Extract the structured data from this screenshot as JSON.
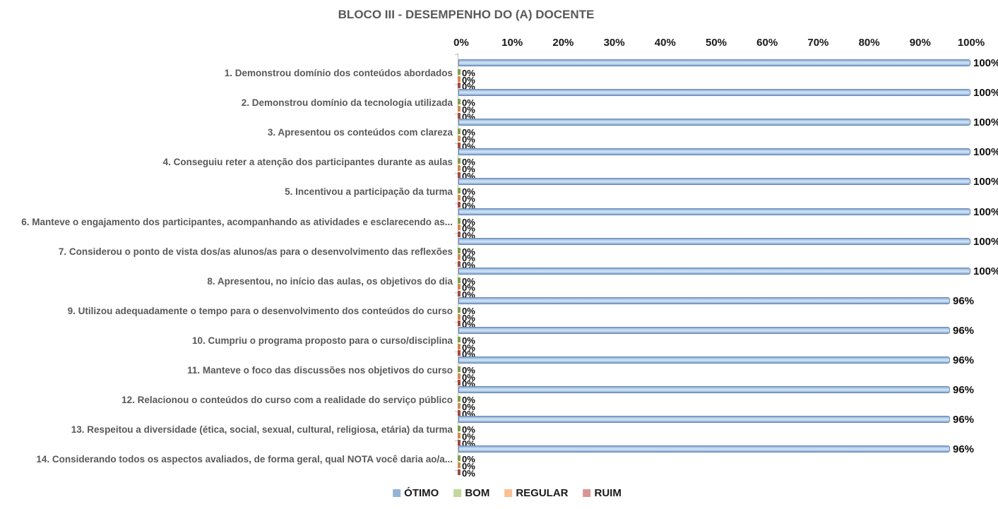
{
  "title": "BLOCO III - DESEMPENHO DO (A) DOCENTE",
  "chart_data": {
    "type": "bar",
    "orientation": "horizontal",
    "title": "BLOCO III - DESEMPENHO DO (A) DOCENTE",
    "categories": [
      "1. Demonstrou domínio dos conteúdos abordados",
      "2. Demonstrou domínio da tecnologia utilizada",
      "3. Apresentou os conteúdos com clareza",
      "4. Conseguiu reter a atenção dos participantes durante as aulas",
      "5. Incentivou a participação da turma",
      "6. Manteve o engajamento dos participantes, acompanhando as atividades e esclarecendo as...",
      "7. Considerou o ponto de vista dos/as alunos/as para o desenvolvimento das reflexões",
      "8. Apresentou, no início das aulas, os objetivos do dia",
      "9. Utilizou adequadamente o tempo para o desenvolvimento dos conteúdos do curso",
      "10. Cumpriu o programa proposto para o curso/disciplina",
      "11. Manteve o foco das discussões nos objetivos do curso",
      "12. Relacionou o conteúdos do curso com a realidade do serviço público",
      "13. Respeitou a diversidade (ética, social, sexual, cultural, religiosa, etária) da turma",
      "14. Considerando todos os aspectos avaliados, de forma geral, qual NOTA você daria ao/a..."
    ],
    "series": [
      {
        "name": "ÓTIMO",
        "color": "#95B3D7",
        "zero_tick_color": "#7f9f4a",
        "values": [
          100,
          100,
          100,
          100,
          100,
          100,
          100,
          100,
          96,
          96,
          96,
          96,
          96,
          96
        ]
      },
      {
        "name": "BOM",
        "color": "#C3D69B",
        "zero_tick_color": "#7f9f4a",
        "values": [
          0,
          0,
          0,
          0,
          0,
          0,
          0,
          0,
          0,
          0,
          0,
          0,
          0,
          0
        ]
      },
      {
        "name": "REGULAR",
        "color": "#FAC090",
        "zero_tick_color": "#d08a4e",
        "values": [
          0,
          0,
          0,
          0,
          0,
          0,
          0,
          0,
          0,
          0,
          0,
          0,
          0,
          0
        ]
      },
      {
        "name": "RUIM",
        "color": "#D99694",
        "zero_tick_color": "#a04a44",
        "values": [
          0,
          0,
          0,
          0,
          0,
          0,
          0,
          0,
          0,
          0,
          0,
          0,
          0,
          0
        ]
      }
    ],
    "x_ticks": [
      "0%",
      "10%",
      "20%",
      "30%",
      "40%",
      "50%",
      "60%",
      "70%",
      "80%",
      "90%",
      "100%"
    ],
    "xlim": [
      0,
      100
    ],
    "data_labels": true,
    "data_label_suffix": "%",
    "grid": false,
    "legend_position": "bottom"
  }
}
